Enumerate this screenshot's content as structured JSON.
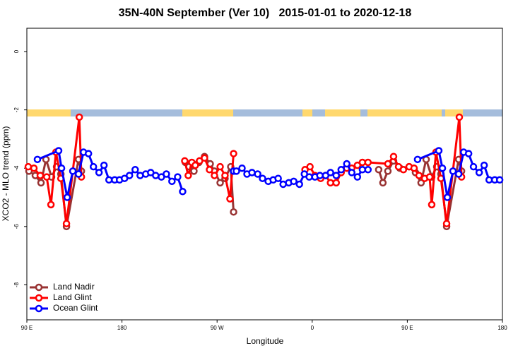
{
  "chart_data": {
    "type": "line",
    "title": "35N-40N September (Ver 10)   2015-01-01 to 2020-12-18",
    "x_label": "Longitude",
    "y_label": "XCO2 - MLO trend (ppm)",
    "xlim": [
      90,
      540
    ],
    "ylim": [
      -9.2,
      0.8
    ],
    "xticks": [
      {
        "value": 90,
        "label": "90 E"
      },
      180,
      {
        "value": 270,
        "label": "90 W"
      },
      {
        "value": 360,
        "label": "0"
      },
      {
        "value": 450,
        "label": "90 E"
      },
      {
        "value": 540,
        "label": "180"
      }
    ],
    "yticks": [
      0,
      -2,
      -4,
      -6,
      -8
    ],
    "legend": "bottom-left",
    "series": [
      {
        "name": "Land Nadir",
        "color": "#993333",
        "x": [
          92,
          98,
          103.4,
          108.1,
          113.4,
          118.1,
          122.2,
          127.5,
          138.9,
          141.6,
          null,
          240,
          243.4,
          248.1,
          252.8,
          258.1,
          263.5,
          267.5,
          272.9,
          277.5,
          282.9,
          285.6,
          null,
          422.9,
          426.9,
          431.6,
          437,
          443,
          451.7,
          457.7,
          463,
          467.8,
          473.1,
          477.8,
          481.8,
          487.2,
          498.6,
          501.3
        ],
        "values": [
          -4.1,
          -4.25,
          -4.5,
          -3.7,
          -4.3,
          -3.95,
          -4.2,
          -6.0,
          -3.7,
          -4.1,
          null,
          -3.8,
          -3.95,
          -4.1,
          -3.8,
          -3.6,
          -3.85,
          -4.1,
          -4.5,
          -4.35,
          -3.95,
          -5.5,
          null,
          -4.05,
          -4.5,
          -4.1,
          -3.75,
          -4.0,
          -3.95,
          -4.15,
          -4.5,
          -3.7,
          -4.3,
          -3.95,
          -4.2,
          -6.0,
          -3.7,
          -4.1
        ]
      },
      {
        "name": "Land Glint",
        "color": "#ff0000",
        "x": [
          91.3,
          96.7,
          102.7,
          108.8,
          112.8,
          117.5,
          122.2,
          127.5,
          139.6,
          141.6,
          null,
          239.4,
          242.7,
          246.1,
          249.4,
          253.4,
          258.1,
          262.8,
          267.5,
          272.9,
          277.5,
          282.2,
          285.6,
          null,
          353.2,
          357.9,
          362.6,
          368,
          372.7,
          377.3,
          382.7,
          387.4,
          392.7,
          397.4,
          402.8,
          407.5,
          412.8,
          431.6,
          437,
          441.7,
          446.3,
          451.7,
          456.4,
          461.1,
          466.4,
          471.1,
          473.1,
          477.1,
          481.8,
          487.2,
          499.2,
          501.3
        ],
        "values": [
          -3.95,
          -4.0,
          -4.25,
          -4.3,
          -5.25,
          -3.45,
          -4.35,
          -5.9,
          -2.25,
          -4.3,
          null,
          -3.75,
          -4.25,
          -3.8,
          -3.9,
          -3.75,
          -3.65,
          -4.05,
          -4.25,
          -3.95,
          -4.25,
          -5.05,
          -3.5,
          null,
          -4.05,
          -3.95,
          -4.25,
          -4.35,
          -4.25,
          -4.5,
          -4.5,
          -4.15,
          -4.0,
          -4.0,
          -3.9,
          -3.8,
          -3.8,
          -3.85,
          -3.6,
          -3.95,
          -4.05,
          -3.95,
          -4.0,
          -4.25,
          -4.35,
          -4.3,
          -5.25,
          -3.45,
          -4.35,
          -5.9,
          -2.25,
          -4.3
        ]
      },
      {
        "name": "Ocean Glint",
        "color": "#0000ff",
        "x": [
          100,
          120.1,
          122.8,
          128.2,
          133.5,
          138.9,
          143.6,
          148.3,
          153,
          158.3,
          163,
          167.7,
          173.1,
          177.7,
          182.4,
          187.1,
          192.5,
          197.2,
          202.5,
          207.2,
          211.9,
          217.3,
          222,
          227.3,
          232.7,
          237.4,
          null,
          285.6,
          288.3,
          293.6,
          298.3,
          303,
          308.4,
          313,
          318.4,
          323.1,
          327.8,
          332.5,
          337.8,
          342.5,
          347.9,
          352.6,
          357.2,
          362.6,
          367.3,
          372.7,
          377.3,
          382.7,
          387.4,
          392.7,
          397.4,
          402.8,
          407.5,
          412.8,
          null,
          459.7,
          479.8,
          483.2,
          487.9,
          493.2,
          498.6,
          503.3,
          508,
          512.6,
          518,
          522.7,
          527.4,
          532.7,
          537.4
        ],
        "values": [
          -3.7,
          -3.4,
          -4.0,
          -5.0,
          -4.1,
          -4.2,
          -3.45,
          -3.5,
          -3.95,
          -4.15,
          -3.9,
          -4.4,
          -4.4,
          -4.4,
          -4.35,
          -4.25,
          -4.05,
          -4.25,
          -4.2,
          -4.15,
          -4.25,
          -4.3,
          -4.2,
          -4.45,
          -4.3,
          -4.8,
          null,
          -4.1,
          -4.1,
          -4.0,
          -4.2,
          -4.15,
          -4.2,
          -4.35,
          -4.45,
          -4.4,
          -4.35,
          -4.55,
          -4.5,
          -4.45,
          -4.55,
          -4.2,
          -4.3,
          -4.3,
          -4.25,
          -4.25,
          -4.15,
          -4.25,
          -4.05,
          -3.85,
          -4.15,
          -4.3,
          -4.05,
          -4.05,
          null,
          -3.7,
          -3.4,
          -4.0,
          -5.0,
          -4.1,
          -4.2,
          -3.45,
          -3.5,
          -3.95,
          -4.15,
          -3.9,
          -4.4,
          -4.4,
          -4.4
        ]
      }
    ]
  }
}
